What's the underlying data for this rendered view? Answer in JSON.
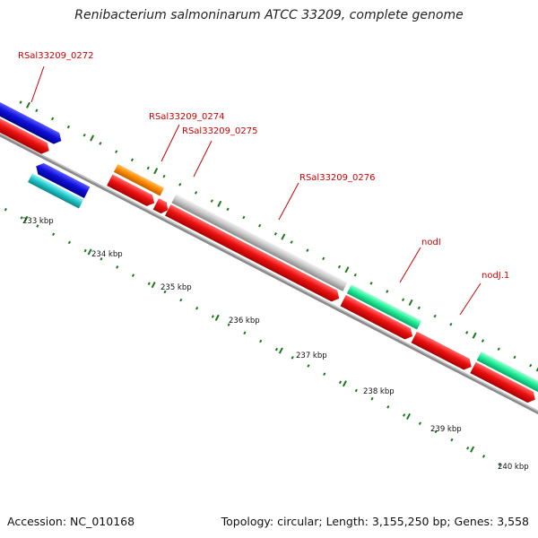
{
  "title": "Renibacterium salmoninarum ATCC 33209, complete genome",
  "footer": {
    "accession": "Accession: NC_010168",
    "summary": "Topology: circular; Length: 3,155,250 bp; Genes: 3,558"
  },
  "colors": {
    "blue": "#1010dd",
    "red": "#ee1111",
    "orange": "#ff8a00",
    "gray": "#c8c8c8",
    "cyan": "#22c8cc",
    "green": "#22ee99",
    "tick": "#1a7a1a",
    "label": "#cc0000"
  },
  "gene_labels": [
    {
      "text": "RSal33209_0272"
    },
    {
      "text": "RSal33209_0274"
    },
    {
      "text": "RSal33209_0275"
    },
    {
      "text": "RSal33209_0276"
    },
    {
      "text": "nodI"
    },
    {
      "text": "nodJ.1"
    }
  ],
  "kbp_labels": [
    {
      "text": "233 kbp"
    },
    {
      "text": "234 kbp"
    },
    {
      "text": "235 kbp"
    },
    {
      "text": "236 kbp"
    },
    {
      "text": "237 kbp"
    },
    {
      "text": "238 kbp"
    },
    {
      "text": "239 kbp"
    },
    {
      "text": "240 kbp"
    }
  ]
}
